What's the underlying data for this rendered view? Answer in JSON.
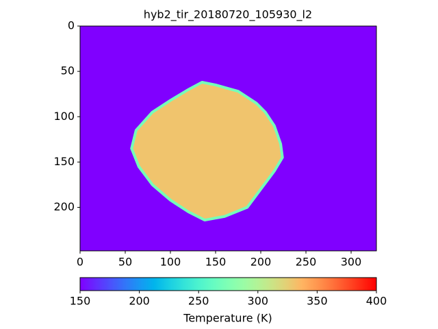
{
  "chart_data": {
    "type": "heatmap",
    "title": "hyb2_tir_20180720_105930_l2",
    "xlim": [
      0,
      328
    ],
    "ylim": [
      248,
      0
    ],
    "xticks": [
      0,
      50,
      100,
      150,
      200,
      250,
      300
    ],
    "yticks": [
      0,
      50,
      100,
      150,
      200
    ],
    "colormap": "rainbow",
    "background_value": 150,
    "shape": {
      "x": [
        135,
        150,
        175,
        195,
        205,
        215,
        222,
        224,
        215,
        200,
        185,
        160,
        138,
        120,
        100,
        80,
        65,
        57,
        62,
        80,
        100,
        120
      ],
      "y": [
        62,
        65,
        72,
        85,
        95,
        110,
        130,
        145,
        160,
        180,
        200,
        210,
        214,
        205,
        192,
        175,
        155,
        135,
        115,
        95,
        82,
        70
      ]
    },
    "shape_value": 330,
    "rim_value": 270,
    "colorbar": {
      "label": "Temperature (K)",
      "clim": [
        150,
        400
      ],
      "ticks": [
        150,
        200,
        250,
        300,
        350,
        400
      ]
    }
  }
}
